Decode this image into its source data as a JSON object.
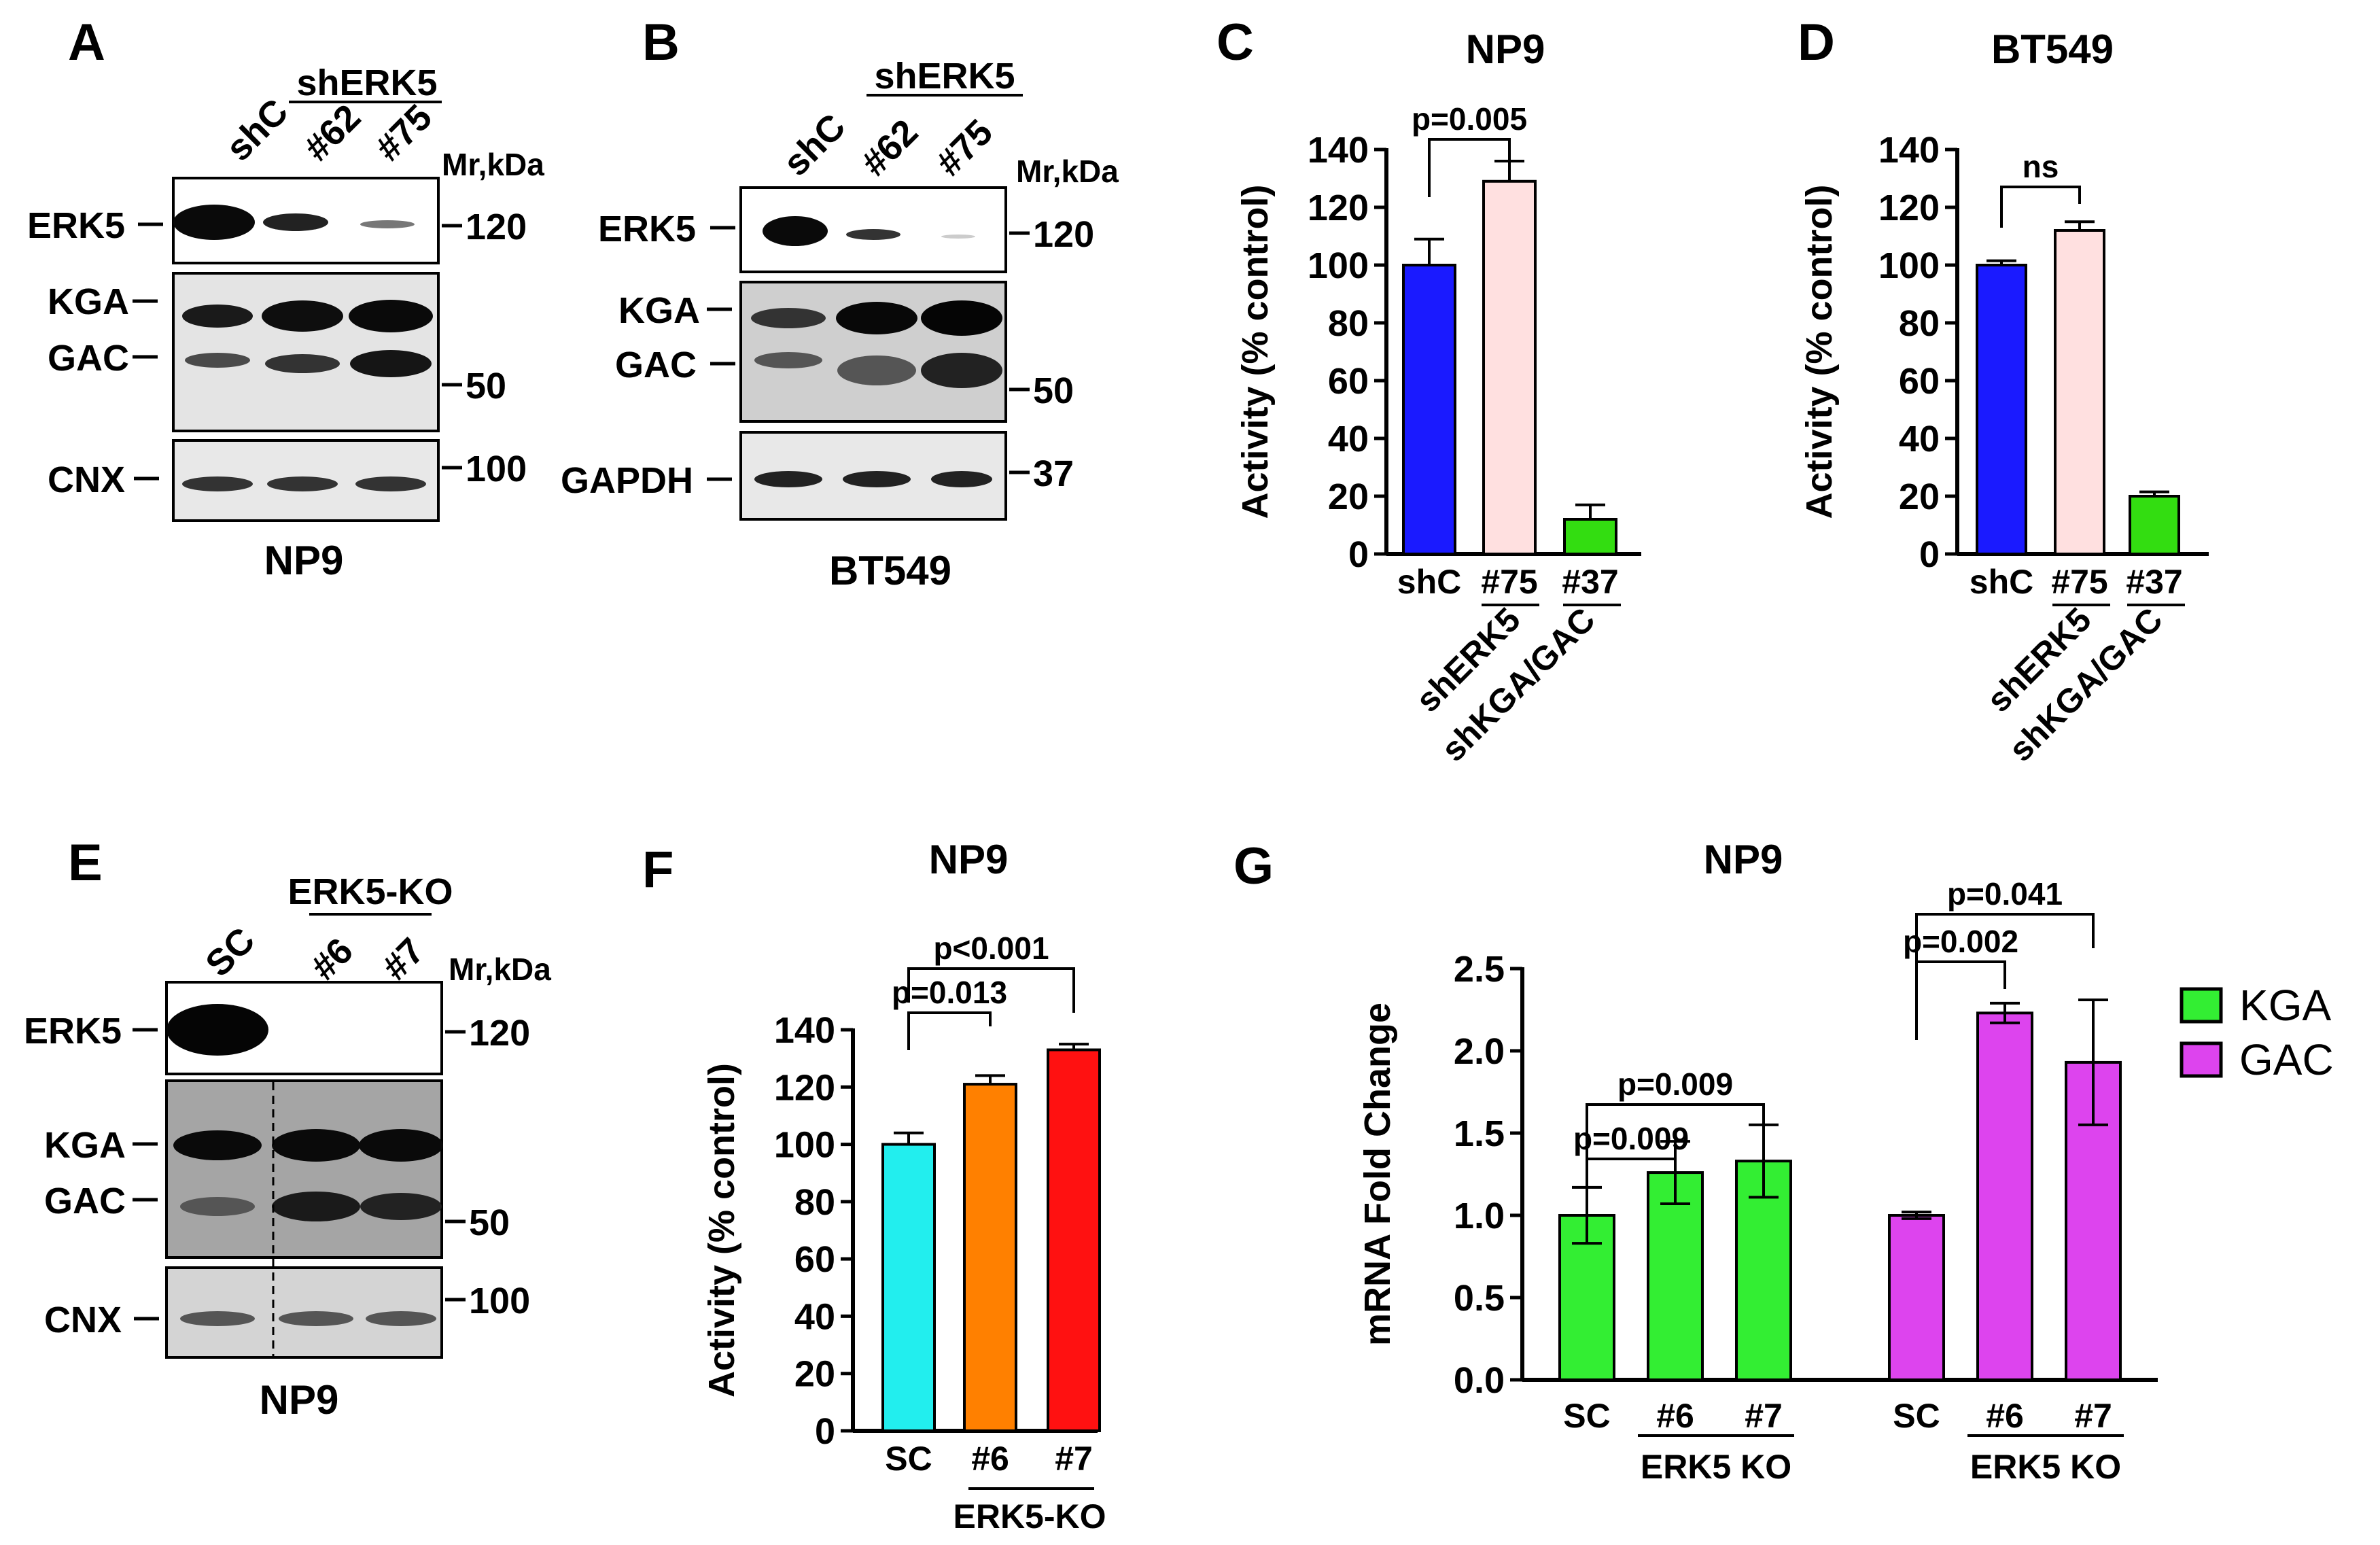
{
  "panels": {
    "A": "A",
    "B": "B",
    "C": "C",
    "D": "D",
    "E": "E",
    "F": "F",
    "G": "G"
  },
  "blotA": {
    "lanes": [
      "shC",
      "#62",
      "#75"
    ],
    "group": "shERK5",
    "mr": "Mr,kDa",
    "rows": [
      "ERK5",
      "KGA",
      "GAC",
      "CNX"
    ],
    "sizes": [
      "120",
      "50",
      "100"
    ],
    "cell": "NP9"
  },
  "blotB": {
    "lanes": [
      "shC",
      "#62",
      "#75"
    ],
    "group": "shERK5",
    "mr": "Mr,kDa",
    "rows": [
      "ERK5",
      "KGA",
      "GAC",
      "GAPDH"
    ],
    "sizes": [
      "120",
      "50",
      "37"
    ],
    "cell": "BT549"
  },
  "blotE": {
    "lanes": [
      "SC",
      "#6",
      "#7"
    ],
    "group": "ERK5-KO",
    "mr": "Mr,kDa",
    "rows": [
      "ERK5",
      "KGA",
      "GAC",
      "CNX"
    ],
    "sizes": [
      "120",
      "50",
      "100"
    ],
    "cell": "NP9"
  },
  "chart_data": [
    {
      "panel": "C",
      "type": "bar",
      "title": "NP9",
      "ylabel": "Activity (% control)",
      "ylim": [
        0,
        140
      ],
      "yticks": [
        "0",
        "20",
        "40",
        "60",
        "80",
        "100",
        "120",
        "140"
      ],
      "categories": [
        "shC",
        "#75",
        "#37"
      ],
      "values": [
        100,
        129,
        12
      ],
      "errors": [
        9,
        7,
        5
      ],
      "colors": [
        "#1a1aff",
        "#ffe0e0",
        "#33dd11"
      ],
      "groups": [
        "shERK5",
        "shKGA/GAC"
      ],
      "annotations": [
        "p=0.005"
      ]
    },
    {
      "panel": "D",
      "type": "bar",
      "title": "BT549",
      "ylabel": "Activity (% control)",
      "ylim": [
        0,
        140
      ],
      "yticks": [
        "0",
        "20",
        "40",
        "60",
        "80",
        "100",
        "120",
        "140"
      ],
      "categories": [
        "shC",
        "#75",
        "#37"
      ],
      "values": [
        100,
        112,
        20
      ],
      "errors": [
        1.5,
        3,
        1.5
      ],
      "colors": [
        "#1a1aff",
        "#ffe0e0",
        "#33dd11"
      ],
      "groups": [
        "shERK5",
        "shKGA/GAC"
      ],
      "annotations": [
        "ns"
      ]
    },
    {
      "panel": "F",
      "type": "bar",
      "title": "NP9",
      "ylabel": "Activity (% control)",
      "ylim": [
        0,
        140
      ],
      "yticks": [
        "0",
        "20",
        "40",
        "60",
        "80",
        "100",
        "120",
        "140"
      ],
      "categories": [
        "SC",
        "#6",
        "#7"
      ],
      "values": [
        100,
        121,
        133
      ],
      "errors": [
        4,
        3,
        2
      ],
      "colors": [
        "#22eeee",
        "#ff8000",
        "#ff1111"
      ],
      "groups": [
        "ERK5-KO"
      ],
      "annotations": [
        "p<0.001",
        "p=0.013"
      ]
    },
    {
      "panel": "G",
      "type": "bar",
      "title": "NP9",
      "ylabel": "mRNA Fold Change",
      "ylim": [
        0,
        2.5
      ],
      "yticks": [
        "0.0",
        "0.5",
        "1.0",
        "1.5",
        "2.0",
        "2.5"
      ],
      "categories": [
        "SC",
        "#6",
        "#7"
      ],
      "group_label": "ERK5 KO",
      "series": [
        {
          "name": "KGA",
          "color": "#33ee33",
          "values": [
            1.0,
            1.26,
            1.33
          ],
          "errors": [
            0.17,
            0.19,
            0.22
          ]
        },
        {
          "name": "GAC",
          "color": "#dd44ee",
          "values": [
            1.0,
            2.23,
            1.93
          ],
          "errors": [
            0.02,
            0.06,
            0.38
          ]
        }
      ],
      "annotations": [
        "p=0.009",
        "p=0.009",
        "p=0.041",
        "p=0.002"
      ]
    }
  ]
}
